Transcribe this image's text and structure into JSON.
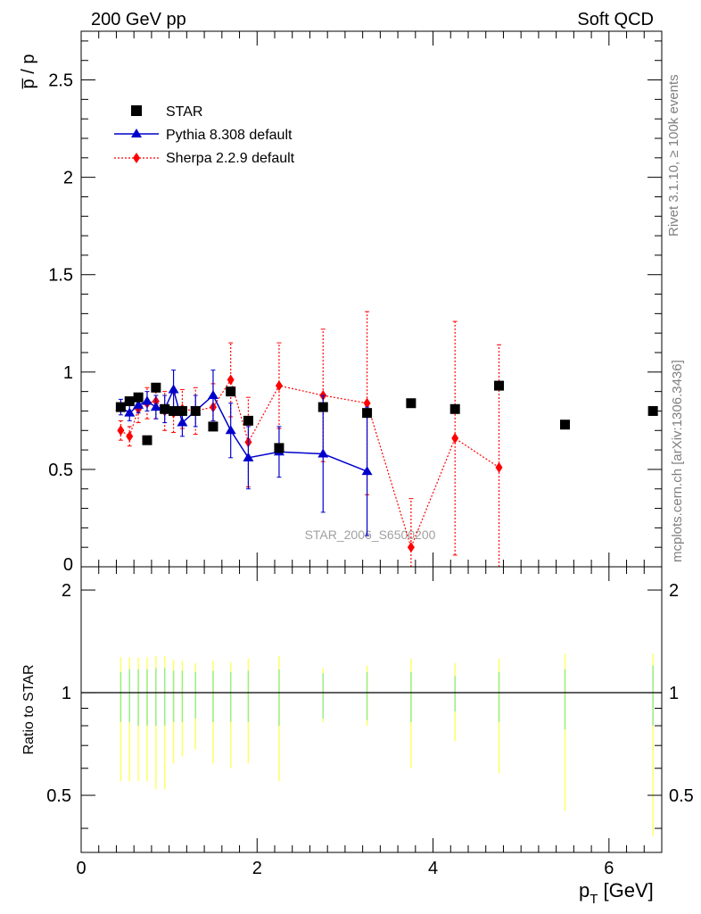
{
  "header": {
    "left": "200 GeV pp",
    "right": "Soft QCD"
  },
  "side_labels": {
    "rivet": "Rivet 3.1.10, ≥ 100k events",
    "mcplots": "mcplots.cern.ch [arXiv:1306.3436]"
  },
  "watermark": "STAR_2006_S6500200",
  "chart_data": [
    {
      "type": "scatter",
      "ylabel": "p̅ / p",
      "xlim": [
        0,
        6.6
      ],
      "ylim": [
        0,
        2.75
      ],
      "yticks": [
        0.5,
        1,
        1.5,
        2,
        2.5
      ],
      "ytick_labels": [
        "0.5",
        "1",
        "1.5",
        "2",
        "2.5"
      ],
      "legend_position": "top-left",
      "series": [
        {
          "name": "STAR",
          "marker": "square",
          "color": "#000000",
          "x": [
            0.45,
            0.55,
            0.65,
            0.75,
            0.85,
            0.95,
            1.05,
            1.15,
            1.3,
            1.5,
            1.7,
            1.9,
            2.25,
            2.75,
            3.25,
            3.75,
            4.25,
            4.75,
            5.5,
            6.5
          ],
          "y": [
            0.82,
            0.85,
            0.87,
            0.65,
            0.92,
            0.81,
            0.8,
            0.8,
            0.8,
            0.72,
            0.9,
            0.75,
            0.61,
            0.82,
            0.79,
            0.84,
            0.81,
            0.93,
            0.73,
            0.8
          ]
        },
        {
          "name": "Pythia 8.308 default",
          "marker": "triangle",
          "color": "#0000cc",
          "x": [
            0.45,
            0.55,
            0.65,
            0.75,
            0.85,
            0.95,
            1.05,
            1.15,
            1.3,
            1.5,
            1.7,
            1.9,
            2.25,
            2.75,
            3.25
          ],
          "y": [
            0.82,
            0.79,
            0.83,
            0.85,
            0.82,
            0.81,
            0.91,
            0.74,
            0.8,
            0.88,
            0.7,
            0.56,
            0.59,
            0.58,
            0.49
          ],
          "yerr": [
            0.04,
            0.04,
            0.04,
            0.05,
            0.06,
            0.07,
            0.1,
            0.07,
            0.08,
            0.13,
            0.14,
            0.16,
            0.13,
            0.3,
            0.33
          ]
        },
        {
          "name": "Sherpa 2.2.9 default",
          "marker": "diamond",
          "color": "#ff0000",
          "x": [
            0.45,
            0.55,
            0.65,
            0.75,
            0.85,
            0.95,
            1.05,
            1.15,
            1.3,
            1.5,
            1.7,
            1.9,
            2.25,
            2.75,
            3.25,
            3.75,
            4.25,
            4.75
          ],
          "y": [
            0.7,
            0.67,
            0.81,
            0.84,
            0.85,
            0.8,
            0.79,
            0.81,
            0.8,
            0.82,
            0.96,
            0.64,
            0.93,
            0.88,
            0.84,
            0.1,
            0.66,
            0.51
          ],
          "yerr": [
            0.05,
            0.05,
            0.07,
            0.08,
            0.09,
            0.1,
            0.1,
            0.1,
            0.12,
            0.12,
            0.19,
            0.23,
            0.22,
            0.34,
            0.47,
            0.25,
            0.6,
            0.63
          ]
        }
      ]
    },
    {
      "type": "scatter",
      "xlabel": "p_T [GeV]",
      "ylabel": "Ratio to STAR",
      "xlim": [
        0,
        6.6
      ],
      "ylim": [
        0.34,
        2.34
      ],
      "xticks": [
        0,
        2,
        4,
        6
      ],
      "xtick_labels": [
        "0",
        "2",
        "4",
        "6"
      ],
      "yticks": [
        0.5,
        1,
        2
      ],
      "ytick_labels": [
        "0.5",
        "1",
        "2"
      ],
      "reference_line": 1,
      "bands": [
        {
          "x": 0.45,
          "inner": [
            0.82,
            1.15
          ],
          "outer": [
            0.55,
            1.27
          ]
        },
        {
          "x": 0.55,
          "inner": [
            0.82,
            1.17
          ],
          "outer": [
            0.55,
            1.27
          ]
        },
        {
          "x": 0.65,
          "inner": [
            0.8,
            1.17
          ],
          "outer": [
            0.55,
            1.27
          ]
        },
        {
          "x": 0.75,
          "inner": [
            0.8,
            1.17
          ],
          "outer": [
            0.55,
            1.27
          ]
        },
        {
          "x": 0.85,
          "inner": [
            0.8,
            1.18
          ],
          "outer": [
            0.52,
            1.28
          ]
        },
        {
          "x": 0.95,
          "inner": [
            0.8,
            1.18
          ],
          "outer": [
            0.52,
            1.28
          ]
        },
        {
          "x": 1.05,
          "inner": [
            0.82,
            1.16
          ],
          "outer": [
            0.62,
            1.25
          ]
        },
        {
          "x": 1.15,
          "inner": [
            0.82,
            1.16
          ],
          "outer": [
            0.65,
            1.24
          ]
        },
        {
          "x": 1.3,
          "inner": [
            0.84,
            1.15
          ],
          "outer": [
            0.68,
            1.22
          ]
        },
        {
          "x": 1.5,
          "inner": [
            0.82,
            1.16
          ],
          "outer": [
            0.62,
            1.24
          ]
        },
        {
          "x": 1.7,
          "inner": [
            0.82,
            1.15
          ],
          "outer": [
            0.6,
            1.23
          ]
        },
        {
          "x": 1.9,
          "inner": [
            0.82,
            1.16
          ],
          "outer": [
            0.62,
            1.26
          ]
        },
        {
          "x": 2.25,
          "inner": [
            0.8,
            1.17
          ],
          "outer": [
            0.55,
            1.28
          ]
        },
        {
          "x": 2.75,
          "inner": [
            0.84,
            1.14
          ],
          "outer": [
            0.82,
            1.18
          ]
        },
        {
          "x": 3.25,
          "inner": [
            0.83,
            1.15
          ],
          "outer": [
            0.8,
            1.2
          ]
        },
        {
          "x": 3.75,
          "inner": [
            0.82,
            1.15
          ],
          "outer": [
            0.6,
            1.26
          ]
        },
        {
          "x": 4.25,
          "inner": [
            0.88,
            1.12
          ],
          "outer": [
            0.72,
            1.22
          ]
        },
        {
          "x": 4.75,
          "inner": [
            0.82,
            1.15
          ],
          "outer": [
            0.58,
            1.26
          ]
        },
        {
          "x": 5.5,
          "inner": [
            0.78,
            1.17
          ],
          "outer": [
            0.45,
            1.3
          ]
        },
        {
          "x": 6.5,
          "inner": [
            0.8,
            1.2
          ],
          "outer": [
            0.38,
            1.3
          ]
        }
      ]
    }
  ]
}
